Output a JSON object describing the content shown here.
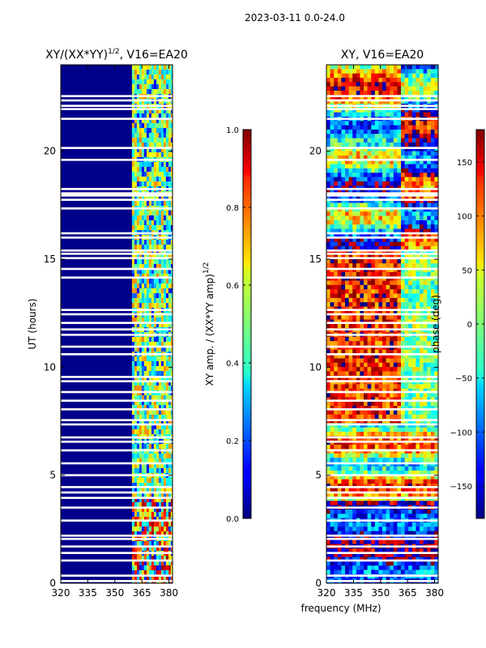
{
  "figure": {
    "suptitle": "2023-03-11 0.0-24.0",
    "xlabel": "frequency (MHz)"
  },
  "chart_data": [
    {
      "type": "heatmap",
      "title": "XY/(XX*YY)^1/2, V16=EA20",
      "title_main": "XY/(XX*YY)",
      "title_sup": "1/2",
      "title_tail": ", V16=EA20",
      "ylabel": "UT (hours)",
      "xlim": [
        320,
        382
      ],
      "ylim": [
        0,
        24
      ],
      "xticks": [
        320,
        335,
        350,
        365,
        380
      ],
      "yticks": [
        0,
        5,
        10,
        15,
        20
      ],
      "bright_band_mhz": [
        359.5,
        382
      ],
      "colorbar": {
        "label": "XY amp. / (XX*YY amp)^1/2",
        "label_main": "XY amp. / (XX*YY amp)",
        "label_sup": "1/2",
        "range": [
          0.0,
          1.0
        ],
        "ticks": [
          0.0,
          0.2,
          0.4,
          0.6,
          0.8,
          1.0
        ],
        "tick_labels": [
          "0.0",
          "0.2",
          "0.4",
          "0.6",
          "0.8",
          "1.0"
        ]
      }
    },
    {
      "type": "heatmap",
      "title": "XY, V16=EA20",
      "ylabel": "",
      "xlim": [
        320,
        382
      ],
      "ylim": [
        0,
        24
      ],
      "xticks": [
        320,
        335,
        350,
        365,
        380
      ],
      "yticks": [
        0,
        5,
        10,
        15,
        20
      ],
      "colorbar": {
        "label": "phase (deg)",
        "range": [
          -180,
          180
        ],
        "ticks": [
          -150,
          -100,
          -50,
          0,
          50,
          100,
          150
        ],
        "tick_labels": [
          "−150",
          "−100",
          "−50",
          "0",
          "50",
          "100",
          "150"
        ]
      }
    }
  ],
  "flagged_hours": [
    0.1,
    0.35,
    1.05,
    1.4,
    1.7,
    2.05,
    2.2,
    2.9,
    3.5,
    3.95,
    4.2,
    4.45,
    5.0,
    5.55,
    6.15,
    6.55,
    6.75,
    7.35,
    7.55,
    8.05,
    8.45,
    8.85,
    9.35,
    9.55,
    10.6,
    10.95,
    11.5,
    11.75,
    12.05,
    12.45,
    12.65,
    14.15,
    14.55,
    15.05,
    15.25,
    15.4,
    16.0,
    16.2,
    17.35,
    17.75,
    17.95,
    18.05,
    18.25,
    19.6,
    20.15,
    21.5,
    21.95,
    22.1,
    22.35,
    22.55
  ]
}
